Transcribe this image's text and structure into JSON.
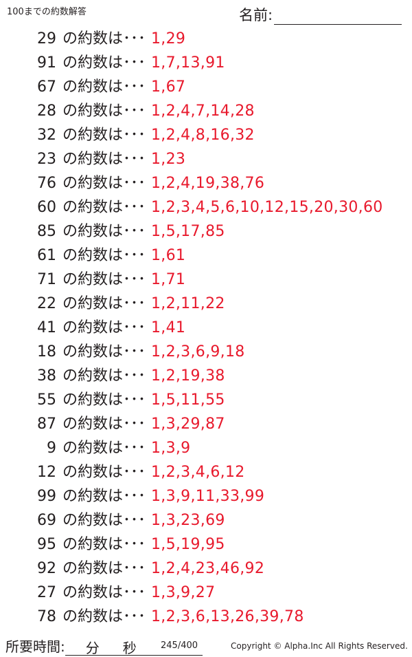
{
  "header": {
    "title": "100までの約数解答",
    "name_label": "名前:"
  },
  "label": "の約数は･･･",
  "answer_color": "#e8192c",
  "rows": [
    {
      "number": "29",
      "divisors": "1,29"
    },
    {
      "number": "91",
      "divisors": "1,7,13,91"
    },
    {
      "number": "67",
      "divisors": "1,67"
    },
    {
      "number": "28",
      "divisors": "1,2,4,7,14,28"
    },
    {
      "number": "32",
      "divisors": "1,2,4,8,16,32"
    },
    {
      "number": "23",
      "divisors": "1,23"
    },
    {
      "number": "76",
      "divisors": "1,2,4,19,38,76"
    },
    {
      "number": "60",
      "divisors": "1,2,3,4,5,6,10,12,15,20,30,60"
    },
    {
      "number": "85",
      "divisors": "1,5,17,85"
    },
    {
      "number": "61",
      "divisors": "1,61"
    },
    {
      "number": "71",
      "divisors": "1,71"
    },
    {
      "number": "22",
      "divisors": "1,2,11,22"
    },
    {
      "number": "41",
      "divisors": "1,41"
    },
    {
      "number": "18",
      "divisors": "1,2,3,6,9,18"
    },
    {
      "number": "38",
      "divisors": "1,2,19,38"
    },
    {
      "number": "55",
      "divisors": "1,5,11,55"
    },
    {
      "number": "87",
      "divisors": "1,3,29,87"
    },
    {
      "number": "9",
      "divisors": "1,3,9"
    },
    {
      "number": "12",
      "divisors": "1,2,3,4,6,12"
    },
    {
      "number": "99",
      "divisors": "1,3,9,11,33,99"
    },
    {
      "number": "69",
      "divisors": "1,3,23,69"
    },
    {
      "number": "95",
      "divisors": "1,5,19,95"
    },
    {
      "number": "92",
      "divisors": "1,2,4,23,46,92"
    },
    {
      "number": "27",
      "divisors": "1,3,9,27"
    },
    {
      "number": "78",
      "divisors": "1,2,3,6,13,26,39,78"
    }
  ],
  "footer": {
    "time_label": "所要時間:",
    "minutes": "分",
    "seconds": "秒",
    "page": "245/400",
    "copyright": "Copyright ©  Alpha.Inc All Rights Reserved."
  }
}
